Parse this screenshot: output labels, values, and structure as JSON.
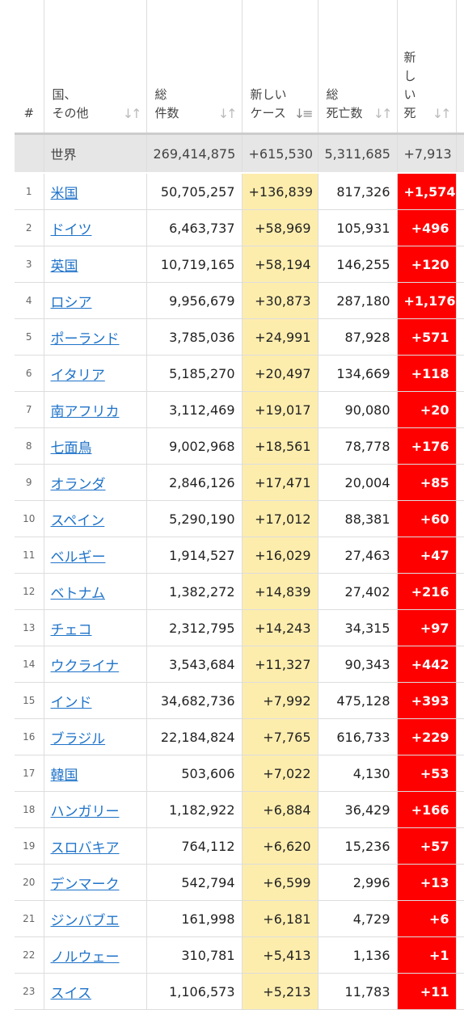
{
  "columns": {
    "num": "#",
    "country": [
      "国、",
      "その他"
    ],
    "total_cases": [
      "総",
      "件数"
    ],
    "new_cases": [
      "新しい",
      "ケース"
    ],
    "total_deaths": [
      "総",
      "死亡数"
    ],
    "new_deaths": [
      "新",
      "し",
      "い",
      "死"
    ]
  },
  "world": {
    "label": "世界",
    "total_cases": "269,414,875",
    "new_cases": "+615,530",
    "total_deaths": "5,311,685",
    "new_deaths": "+7,913"
  },
  "rows": [
    {
      "rank": "1",
      "country": "米国",
      "total_cases": "50,705,257",
      "new_cases": "+136,839",
      "total_deaths": "817,326",
      "new_deaths": "+1,574"
    },
    {
      "rank": "2",
      "country": "ドイツ",
      "total_cases": "6,463,737",
      "new_cases": "+58,969",
      "total_deaths": "105,931",
      "new_deaths": "+496"
    },
    {
      "rank": "3",
      "country": "英国",
      "total_cases": "10,719,165",
      "new_cases": "+58,194",
      "total_deaths": "146,255",
      "new_deaths": "+120"
    },
    {
      "rank": "4",
      "country": "ロシア",
      "total_cases": "9,956,679",
      "new_cases": "+30,873",
      "total_deaths": "287,180",
      "new_deaths": "+1,176"
    },
    {
      "rank": "5",
      "country": "ポーランド",
      "total_cases": "3,785,036",
      "new_cases": "+24,991",
      "total_deaths": "87,928",
      "new_deaths": "+571"
    },
    {
      "rank": "6",
      "country": "イタリア",
      "total_cases": "5,185,270",
      "new_cases": "+20,497",
      "total_deaths": "134,669",
      "new_deaths": "+118"
    },
    {
      "rank": "7",
      "country": "南アフリカ",
      "total_cases": "3,112,469",
      "new_cases": "+19,017",
      "total_deaths": "90,080",
      "new_deaths": "+20"
    },
    {
      "rank": "8",
      "country": "七面鳥",
      "total_cases": "9,002,968",
      "new_cases": "+18,561",
      "total_deaths": "78,778",
      "new_deaths": "+176"
    },
    {
      "rank": "9",
      "country": "オランダ",
      "total_cases": "2,846,126",
      "new_cases": "+17,471",
      "total_deaths": "20,004",
      "new_deaths": "+85"
    },
    {
      "rank": "10",
      "country": "スペイン",
      "total_cases": "5,290,190",
      "new_cases": "+17,012",
      "total_deaths": "88,381",
      "new_deaths": "+60"
    },
    {
      "rank": "11",
      "country": "ベルギー",
      "total_cases": "1,914,527",
      "new_cases": "+16,029",
      "total_deaths": "27,463",
      "new_deaths": "+47"
    },
    {
      "rank": "12",
      "country": "ベトナム",
      "total_cases": "1,382,272",
      "new_cases": "+14,839",
      "total_deaths": "27,402",
      "new_deaths": "+216"
    },
    {
      "rank": "13",
      "country": "チェコ",
      "total_cases": "2,312,795",
      "new_cases": "+14,243",
      "total_deaths": "34,315",
      "new_deaths": "+97"
    },
    {
      "rank": "14",
      "country": "ウクライナ",
      "total_cases": "3,543,684",
      "new_cases": "+11,327",
      "total_deaths": "90,343",
      "new_deaths": "+442"
    },
    {
      "rank": "15",
      "country": "インド",
      "total_cases": "34,682,736",
      "new_cases": "+7,992",
      "total_deaths": "475,128",
      "new_deaths": "+393"
    },
    {
      "rank": "16",
      "country": "ブラジル",
      "total_cases": "22,184,824",
      "new_cases": "+7,765",
      "total_deaths": "616,733",
      "new_deaths": "+229"
    },
    {
      "rank": "17",
      "country": "韓国",
      "total_cases": "503,606",
      "new_cases": "+7,022",
      "total_deaths": "4,130",
      "new_deaths": "+53"
    },
    {
      "rank": "18",
      "country": "ハンガリー",
      "total_cases": "1,182,922",
      "new_cases": "+6,884",
      "total_deaths": "36,429",
      "new_deaths": "+166"
    },
    {
      "rank": "19",
      "country": "スロバキア",
      "total_cases": "764,112",
      "new_cases": "+6,620",
      "total_deaths": "15,236",
      "new_deaths": "+57"
    },
    {
      "rank": "20",
      "country": "デンマーク",
      "total_cases": "542,794",
      "new_cases": "+6,599",
      "total_deaths": "2,996",
      "new_deaths": "+13"
    },
    {
      "rank": "21",
      "country": "ジンバブエ",
      "total_cases": "161,998",
      "new_cases": "+6,181",
      "total_deaths": "4,729",
      "new_deaths": "+6"
    },
    {
      "rank": "22",
      "country": "ノルウェー",
      "total_cases": "310,781",
      "new_cases": "+5,413",
      "total_deaths": "1,136",
      "new_deaths": "+1"
    },
    {
      "rank": "23",
      "country": "スイス",
      "total_cases": "1,106,573",
      "new_cases": "+5,213",
      "total_deaths": "11,783",
      "new_deaths": "+11"
    }
  ],
  "colors": {
    "link": "#1f73c9",
    "new_cases_bg": "#fdedad",
    "new_deaths_bg": "#ff0000",
    "world_row_bg": "#e6e6e6"
  },
  "icons": {
    "sort": "sort-arrows-icon"
  }
}
